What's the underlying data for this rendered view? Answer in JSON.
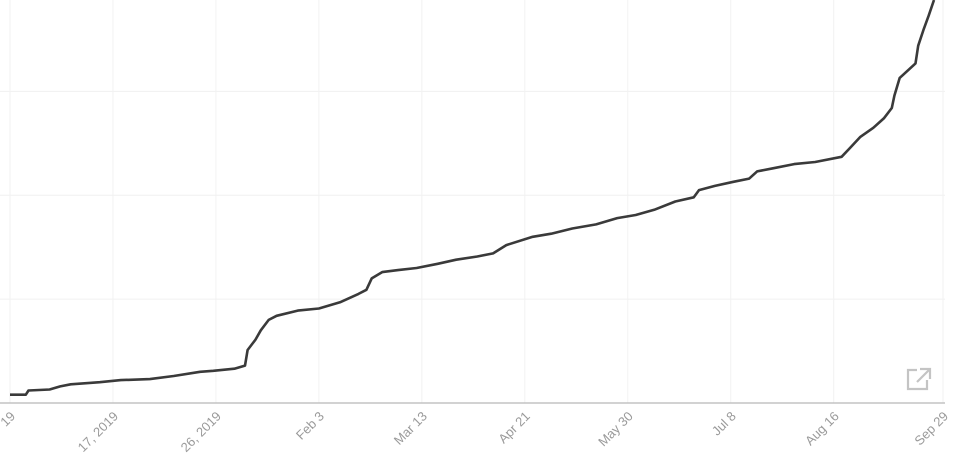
{
  "chart_data": {
    "type": "line",
    "title": "",
    "xlabel": "",
    "ylabel": "",
    "x_type": "date",
    "xlim": [
      "2019-10-09",
      "2020-09-29"
    ],
    "ylim": [
      0,
      3.88
    ],
    "y_gridlines": [
      1,
      2,
      3
    ],
    "y_tick_labels_shown": false,
    "grid": true,
    "legend": "none",
    "line_color": "#3a3a3a",
    "x_ticks": [
      {
        "date": "2019-10-09",
        "label": "19"
      },
      {
        "date": "2019-11-17",
        "label": "17, 2019"
      },
      {
        "date": "2019-12-26",
        "label": "26, 2019"
      },
      {
        "date": "2020-02-03",
        "label": "Feb 3"
      },
      {
        "date": "2020-03-13",
        "label": "Mar 13"
      },
      {
        "date": "2020-04-21",
        "label": "Apr 21"
      },
      {
        "date": "2020-05-30",
        "label": "May 30"
      },
      {
        "date": "2020-07-08",
        "label": "Jul 8"
      },
      {
        "date": "2020-08-16",
        "label": "Aug 16"
      },
      {
        "date": "2020-09-29",
        "label": "Sep 29"
      }
    ],
    "series": [
      {
        "points": [
          [
            "2019-10-09",
            0.08
          ],
          [
            "2019-10-15",
            0.08
          ],
          [
            "2019-10-16",
            0.12
          ],
          [
            "2019-10-24",
            0.13
          ],
          [
            "2019-10-28",
            0.16
          ],
          [
            "2019-11-01",
            0.18
          ],
          [
            "2019-11-12",
            0.2
          ],
          [
            "2019-11-20",
            0.22
          ],
          [
            "2019-12-01",
            0.23
          ],
          [
            "2019-12-10",
            0.26
          ],
          [
            "2019-12-20",
            0.3
          ],
          [
            "2019-12-25",
            0.31
          ],
          [
            "2020-01-02",
            0.33
          ],
          [
            "2020-01-06",
            0.36
          ],
          [
            "2020-01-07",
            0.51
          ],
          [
            "2020-01-10",
            0.61
          ],
          [
            "2020-01-12",
            0.7
          ],
          [
            "2020-01-15",
            0.8
          ],
          [
            "2020-01-18",
            0.84
          ],
          [
            "2020-01-26",
            0.89
          ],
          [
            "2020-02-03",
            0.91
          ],
          [
            "2020-02-11",
            0.97
          ],
          [
            "2020-02-18",
            1.05
          ],
          [
            "2020-02-21",
            1.09
          ],
          [
            "2020-02-23",
            1.2
          ],
          [
            "2020-02-27",
            1.26
          ],
          [
            "2020-03-04",
            1.28
          ],
          [
            "2020-03-11",
            1.3
          ],
          [
            "2020-03-19",
            1.34
          ],
          [
            "2020-03-26",
            1.38
          ],
          [
            "2020-04-03",
            1.41
          ],
          [
            "2020-04-09",
            1.44
          ],
          [
            "2020-04-14",
            1.52
          ],
          [
            "2020-04-24",
            1.6
          ],
          [
            "2020-05-01",
            1.63
          ],
          [
            "2020-05-09",
            1.68
          ],
          [
            "2020-05-18",
            1.72
          ],
          [
            "2020-05-26",
            1.78
          ],
          [
            "2020-06-02",
            1.81
          ],
          [
            "2020-06-09",
            1.86
          ],
          [
            "2020-06-17",
            1.94
          ],
          [
            "2020-06-24",
            1.98
          ],
          [
            "2020-06-26",
            2.05
          ],
          [
            "2020-07-02",
            2.09
          ],
          [
            "2020-07-09",
            2.13
          ],
          [
            "2020-07-15",
            2.16
          ],
          [
            "2020-07-18",
            2.23
          ],
          [
            "2020-07-24",
            2.26
          ],
          [
            "2020-08-01",
            2.3
          ],
          [
            "2020-08-09",
            2.32
          ],
          [
            "2020-08-19",
            2.37
          ],
          [
            "2020-08-22",
            2.45
          ],
          [
            "2020-08-26",
            2.56
          ],
          [
            "2020-08-31",
            2.65
          ],
          [
            "2020-09-04",
            2.74
          ],
          [
            "2020-09-07",
            2.84
          ],
          [
            "2020-09-08",
            2.96
          ],
          [
            "2020-09-10",
            3.13
          ],
          [
            "2020-09-16",
            3.27
          ],
          [
            "2020-09-17",
            3.44
          ],
          [
            "2020-09-19",
            3.59
          ],
          [
            "2020-09-21",
            3.73
          ],
          [
            "2020-09-23",
            3.88
          ]
        ]
      }
    ]
  },
  "icons": {
    "share": "external-link-icon"
  }
}
